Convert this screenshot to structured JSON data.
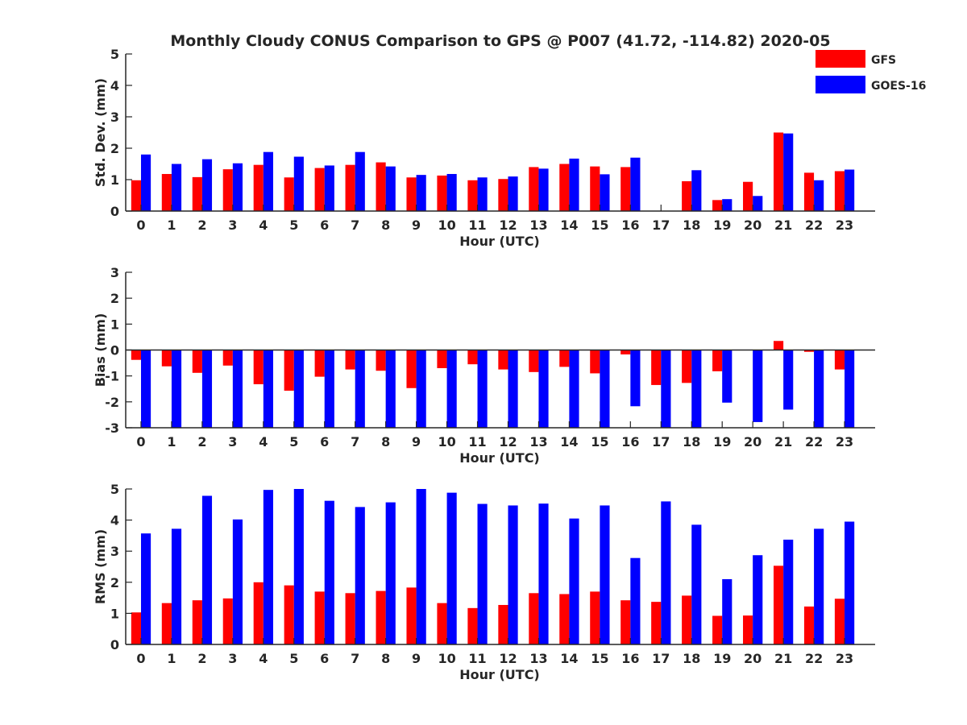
{
  "title": "Monthly Cloudy CONUS Comparison to GPS @ P007 (41.72, -114.82) 2020-05",
  "colors": {
    "gfs": "#ff0000",
    "goes": "#0000ff",
    "axis": "#262626"
  },
  "legend": {
    "gfs_label": "GFS",
    "goes_label": "GOES-16",
    "placement": "top-right"
  },
  "chart_data": [
    {
      "type": "bar",
      "name": "stddev",
      "title": "Monthly Cloudy CONUS Comparison to GPS @ P007 (41.72, -114.82) 2020-05",
      "xlabel": "Hour (UTC)",
      "ylabel": "Std. Dev. (mm)",
      "ylim": [
        0,
        5
      ],
      "yticks": [
        0,
        1,
        2,
        3,
        4,
        5
      ],
      "categories": [
        "0",
        "1",
        "2",
        "3",
        "4",
        "5",
        "6",
        "7",
        "8",
        "9",
        "10",
        "11",
        "12",
        "13",
        "14",
        "15",
        "16",
        "17",
        "18",
        "19",
        "20",
        "21",
        "22",
        "23"
      ],
      "series": [
        {
          "name": "GFS",
          "values": [
            0.98,
            1.18,
            1.08,
            1.33,
            1.47,
            1.07,
            1.37,
            1.47,
            1.55,
            1.07,
            1.13,
            0.98,
            1.02,
            1.4,
            1.5,
            1.42,
            1.4,
            null,
            0.95,
            0.35,
            0.93,
            2.5,
            1.22,
            1.27
          ]
        },
        {
          "name": "GOES-16",
          "values": [
            1.8,
            1.5,
            1.65,
            1.52,
            1.88,
            1.73,
            1.45,
            1.88,
            1.42,
            1.15,
            1.18,
            1.07,
            1.1,
            1.35,
            1.67,
            1.17,
            1.7,
            null,
            1.3,
            0.38,
            0.48,
            2.47,
            0.98,
            1.32
          ]
        }
      ]
    },
    {
      "type": "bar",
      "name": "bias",
      "xlabel": "Hour (UTC)",
      "ylabel": "Bias (mm)",
      "ylim": [
        -3,
        3
      ],
      "yticks": [
        -3,
        -2,
        -1,
        0,
        1,
        2,
        3
      ],
      "categories": [
        "0",
        "1",
        "2",
        "3",
        "4",
        "5",
        "6",
        "7",
        "8",
        "9",
        "10",
        "11",
        "12",
        "13",
        "14",
        "15",
        "16",
        "17",
        "18",
        "19",
        "20",
        "21",
        "22",
        "23"
      ],
      "series": [
        {
          "name": "GFS",
          "values": [
            -0.38,
            -0.63,
            -0.88,
            -0.6,
            -1.32,
            -1.57,
            -1.03,
            -0.75,
            -0.8,
            -1.47,
            -0.7,
            -0.55,
            -0.75,
            -0.85,
            -0.65,
            -0.9,
            -0.17,
            -1.35,
            -1.27,
            -0.82,
            0.0,
            0.35,
            -0.07,
            -0.75
          ]
        },
        {
          "name": "GOES-16",
          "values": [
            -3.0,
            -3.0,
            -3.0,
            -3.0,
            -3.0,
            -3.0,
            -3.0,
            -3.0,
            -3.0,
            -3.0,
            -3.0,
            -3.0,
            -3.0,
            -3.0,
            -3.0,
            -3.0,
            -2.17,
            -3.0,
            -3.0,
            -2.03,
            -2.78,
            -2.3,
            -3.0,
            -3.0
          ]
        }
      ]
    },
    {
      "type": "bar",
      "name": "rms",
      "xlabel": "Hour (UTC)",
      "ylabel": "RMS (mm)",
      "ylim": [
        0,
        5
      ],
      "yticks": [
        0,
        1,
        2,
        3,
        4,
        5
      ],
      "categories": [
        "0",
        "1",
        "2",
        "3",
        "4",
        "5",
        "6",
        "7",
        "8",
        "9",
        "10",
        "11",
        "12",
        "13",
        "14",
        "15",
        "16",
        "17",
        "18",
        "19",
        "20",
        "21",
        "22",
        "23"
      ],
      "series": [
        {
          "name": "GFS",
          "values": [
            1.03,
            1.33,
            1.42,
            1.48,
            2.0,
            1.9,
            1.7,
            1.65,
            1.72,
            1.83,
            1.33,
            1.17,
            1.27,
            1.65,
            1.62,
            1.7,
            1.42,
            1.37,
            1.57,
            0.92,
            0.93,
            2.53,
            1.22,
            1.47
          ]
        },
        {
          "name": "GOES-16",
          "values": [
            3.57,
            3.72,
            4.78,
            4.02,
            4.97,
            5.0,
            4.62,
            4.42,
            4.57,
            5.0,
            4.88,
            4.52,
            4.47,
            4.53,
            4.05,
            4.47,
            2.78,
            4.6,
            3.85,
            2.1,
            2.87,
            3.37,
            3.72,
            3.95
          ]
        }
      ]
    }
  ]
}
